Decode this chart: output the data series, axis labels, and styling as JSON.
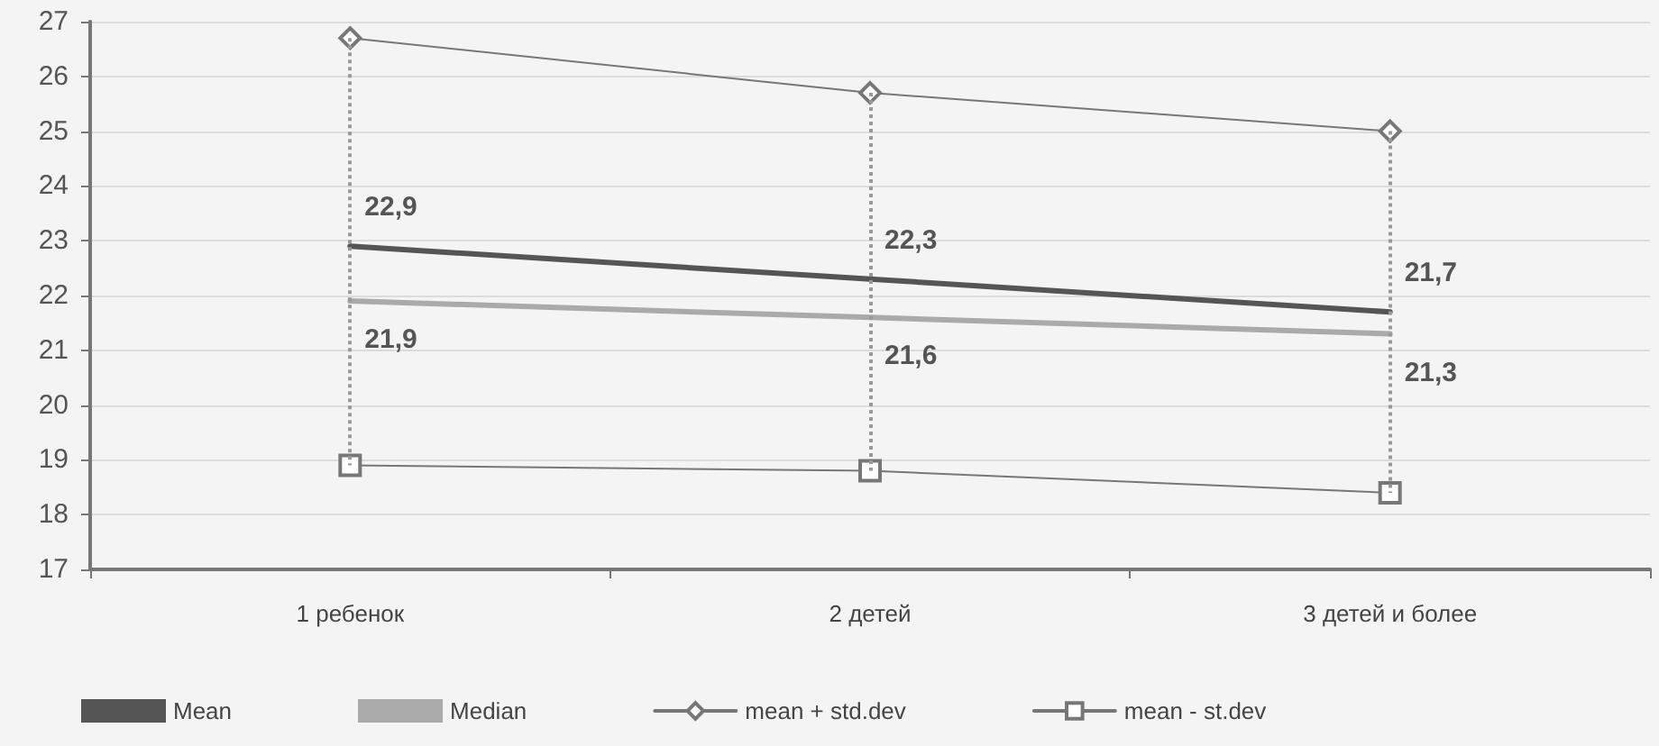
{
  "chart_data": {
    "type": "line",
    "categories": [
      "1 ребенок",
      "2 детей",
      "3 детей и более"
    ],
    "series": [
      {
        "name": "Mean",
        "color": "#555555",
        "values": [
          22.9,
          22.3,
          21.7
        ],
        "value_labels": [
          "22,9",
          "22,3",
          "21,7"
        ],
        "marker": "none",
        "errors": [
          [
            18.9,
            26.7
          ],
          [
            18.8,
            25.7
          ],
          [
            18.4,
            25.0
          ]
        ]
      },
      {
        "name": "Median",
        "color": "#aaaaaa",
        "values": [
          21.9,
          21.6,
          21.3
        ],
        "value_labels": [
          "21,9",
          "21,6",
          "21,3"
        ],
        "marker": "none"
      },
      {
        "name": "mean + std.dev",
        "color": "#777777",
        "values": [
          26.7,
          25.7,
          25.0
        ],
        "marker": "diamond"
      },
      {
        "name": "mean - st.dev",
        "color": "#777777",
        "values": [
          18.9,
          18.8,
          18.4
        ],
        "marker": "square"
      }
    ],
    "ylim": [
      17,
      27
    ],
    "yticks": [
      17,
      18,
      19,
      20,
      21,
      22,
      23,
      24,
      25,
      26,
      27
    ],
    "grid": "y",
    "legend": "bottom"
  }
}
